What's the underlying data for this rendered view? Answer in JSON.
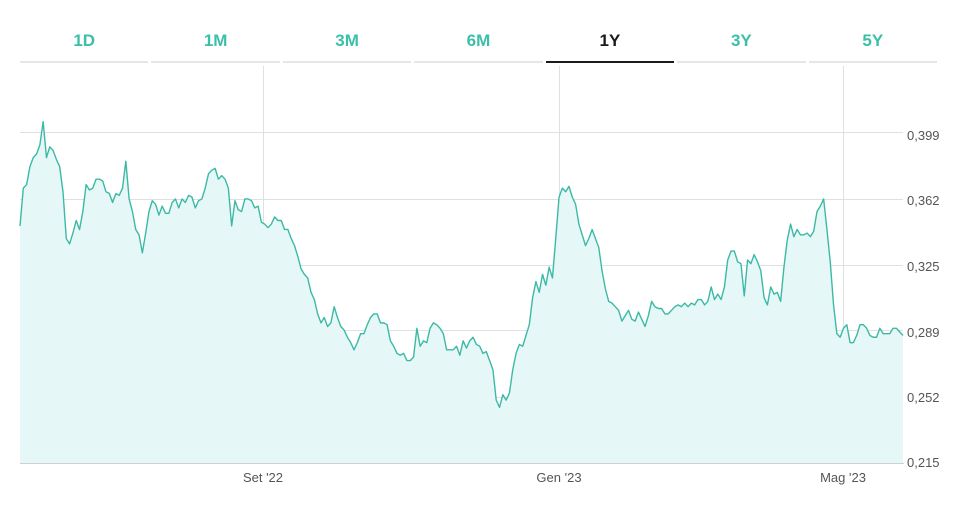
{
  "tabs": [
    {
      "label": "1D",
      "active": false
    },
    {
      "label": "1M",
      "active": false
    },
    {
      "label": "3M",
      "active": false
    },
    {
      "label": "6M",
      "active": false
    },
    {
      "label": "1Y",
      "active": true
    },
    {
      "label": "3Y",
      "active": false
    },
    {
      "label": "5Y",
      "active": false
    }
  ],
  "colors": {
    "accent": "#3bbfa8",
    "tab_inactive": "#3bbfa8",
    "tab_active": "#1a1a1a",
    "line": "#3cb9a5",
    "area": "#e6f7f7",
    "grid": "#e0e0e0"
  },
  "chart_data": {
    "type": "area",
    "title": "",
    "xlabel": "",
    "ylabel": "",
    "ylim": [
      0.215,
      0.436
    ],
    "grid": true,
    "yticks": [
      0.215,
      0.252,
      0.289,
      0.325,
      0.362,
      0.399
    ],
    "ytick_labels": [
      "0,215",
      "0,252",
      "0,289",
      "0,325",
      "0,362",
      "0,399"
    ],
    "xticks": [
      "Set '22",
      "Gen '23",
      "Mag '23"
    ],
    "series": [
      {
        "values": [
          0.347,
          0.368,
          0.37,
          0.38,
          0.385,
          0.387,
          0.392,
          0.405,
          0.385,
          0.391,
          0.389,
          0.384,
          0.38,
          0.366,
          0.34,
          0.337,
          0.343,
          0.35,
          0.345,
          0.355,
          0.37,
          0.367,
          0.368,
          0.373,
          0.373,
          0.372,
          0.366,
          0.365,
          0.36,
          0.365,
          0.364,
          0.368,
          0.383,
          0.362,
          0.355,
          0.345,
          0.342,
          0.332,
          0.343,
          0.355,
          0.361,
          0.359,
          0.353,
          0.358,
          0.354,
          0.354,
          0.36,
          0.362,
          0.357,
          0.362,
          0.36,
          0.364,
          0.363,
          0.357,
          0.361,
          0.362,
          0.368,
          0.376,
          0.378,
          0.379,
          0.373,
          0.375,
          0.373,
          0.368,
          0.347,
          0.361,
          0.356,
          0.355,
          0.362,
          0.362,
          0.361,
          0.357,
          0.358,
          0.349,
          0.348,
          0.346,
          0.348,
          0.352,
          0.35,
          0.35,
          0.345,
          0.345,
          0.34,
          0.336,
          0.33,
          0.323,
          0.32,
          0.318,
          0.31,
          0.306,
          0.298,
          0.293,
          0.296,
          0.291,
          0.293,
          0.302,
          0.296,
          0.291,
          0.289,
          0.285,
          0.282,
          0.278,
          0.282,
          0.287,
          0.287,
          0.292,
          0.296,
          0.298,
          0.298,
          0.293,
          0.293,
          0.292,
          0.283,
          0.28,
          0.276,
          0.275,
          0.276,
          0.272,
          0.272,
          0.274,
          0.29,
          0.28,
          0.283,
          0.282,
          0.29,
          0.293,
          0.292,
          0.29,
          0.287,
          0.278,
          0.278,
          0.278,
          0.28,
          0.275,
          0.283,
          0.279,
          0.283,
          0.285,
          0.281,
          0.28,
          0.276,
          0.277,
          0.272,
          0.267,
          0.25,
          0.246,
          0.253,
          0.25,
          0.254,
          0.267,
          0.276,
          0.281,
          0.28,
          0.286,
          0.292,
          0.307,
          0.316,
          0.31,
          0.32,
          0.314,
          0.324,
          0.318,
          0.34,
          0.363,
          0.368,
          0.366,
          0.369,
          0.363,
          0.359,
          0.348,
          0.342,
          0.336,
          0.34,
          0.345,
          0.34,
          0.335,
          0.322,
          0.312,
          0.305,
          0.304,
          0.302,
          0.3,
          0.294,
          0.297,
          0.3,
          0.295,
          0.294,
          0.299,
          0.295,
          0.291,
          0.297,
          0.305,
          0.302,
          0.301,
          0.301,
          0.298,
          0.298,
          0.3,
          0.302,
          0.303,
          0.302,
          0.304,
          0.302,
          0.304,
          0.303,
          0.306,
          0.306,
          0.303,
          0.305,
          0.313,
          0.306,
          0.309,
          0.306,
          0.313,
          0.328,
          0.333,
          0.333,
          0.327,
          0.326,
          0.308,
          0.328,
          0.326,
          0.331,
          0.327,
          0.322,
          0.307,
          0.303,
          0.313,
          0.309,
          0.31,
          0.305,
          0.324,
          0.339,
          0.348,
          0.341,
          0.345,
          0.342,
          0.342,
          0.343,
          0.341,
          0.344,
          0.355,
          0.358,
          0.362,
          0.345,
          0.327,
          0.303,
          0.287,
          0.285,
          0.29,
          0.292,
          0.282,
          0.282,
          0.286,
          0.292,
          0.292,
          0.29,
          0.286,
          0.285,
          0.285,
          0.29,
          0.287,
          0.287,
          0.287,
          0.29,
          0.29,
          0.288,
          0.286
        ]
      }
    ]
  }
}
